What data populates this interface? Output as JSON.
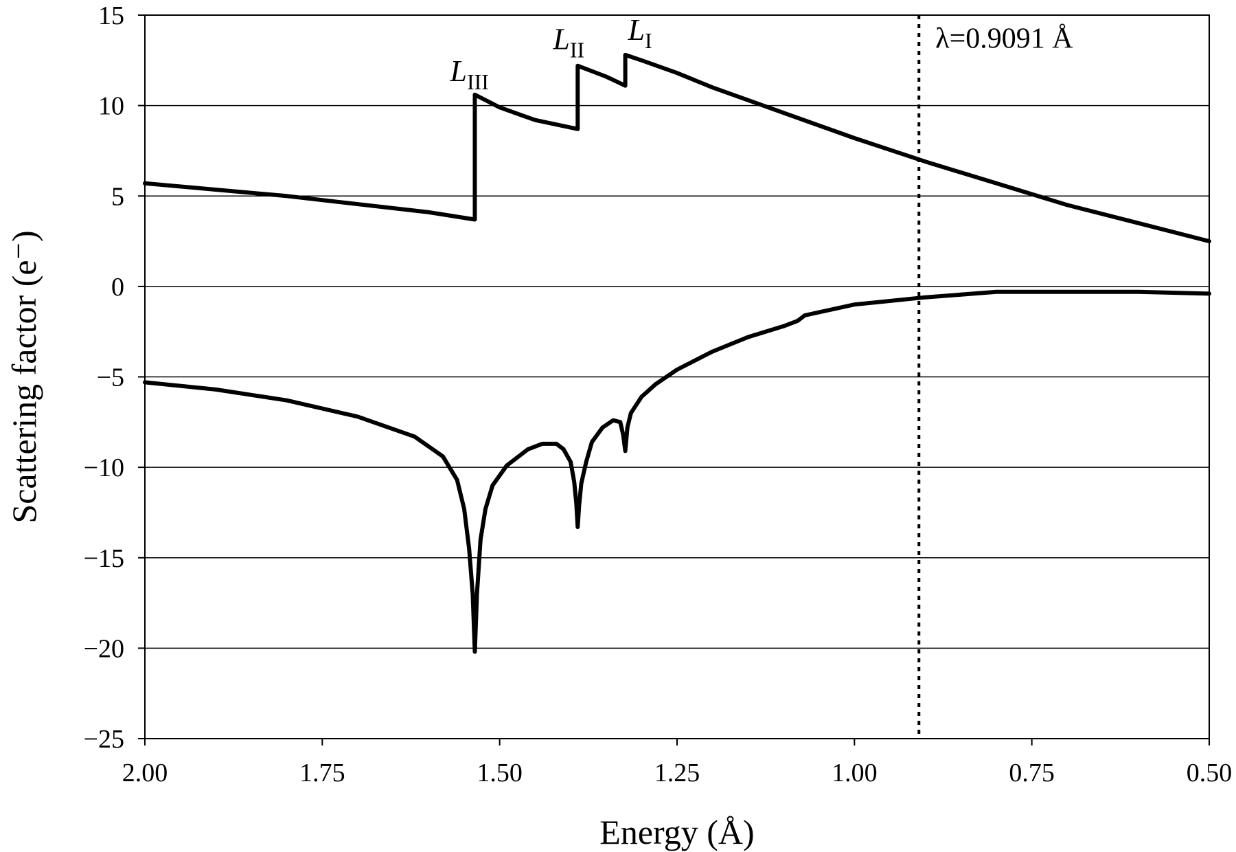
{
  "chart_data": {
    "type": "line",
    "xlabel": "Energy (Å)",
    "ylabel": "Scattering factor (e⁻)",
    "xlim": [
      2.0,
      0.5
    ],
    "x_reversed": true,
    "ylim": [
      -25,
      15
    ],
    "x_ticks": [
      2.0,
      1.75,
      1.5,
      1.25,
      1.0,
      0.75,
      0.5
    ],
    "x_tick_labels": [
      "2.00",
      "1.75",
      "1.50",
      "1.25",
      "1.00",
      "0.75",
      "0.50"
    ],
    "y_ticks": [
      15,
      10,
      5,
      0,
      -5,
      -10,
      -15,
      -20,
      -25
    ],
    "y_tick_labels": [
      "15",
      "10",
      "5",
      "0",
      "−5",
      "−10",
      "−15",
      "−20",
      "−25"
    ],
    "grid": "horizontal",
    "series": [
      {
        "line_color": "#000000",
        "points": [
          [
            2.0,
            5.7
          ],
          [
            1.8,
            5.0
          ],
          [
            1.6,
            4.1
          ],
          [
            1.535,
            3.7
          ],
          [
            1.535,
            10.6
          ],
          [
            1.5,
            9.9
          ],
          [
            1.45,
            9.2
          ],
          [
            1.39,
            8.7
          ],
          [
            1.39,
            12.2
          ],
          [
            1.35,
            11.6
          ],
          [
            1.323,
            11.1
          ],
          [
            1.323,
            12.8
          ],
          [
            1.3,
            12.5
          ],
          [
            1.25,
            11.8
          ],
          [
            1.2,
            11.0
          ],
          [
            1.1,
            9.6
          ],
          [
            1.0,
            8.2
          ],
          [
            0.9,
            6.9
          ],
          [
            0.8,
            5.7
          ],
          [
            0.7,
            4.5
          ],
          [
            0.6,
            3.5
          ],
          [
            0.5,
            2.5
          ]
        ]
      },
      {
        "line_color": "#000000",
        "points": [
          [
            2.0,
            -5.3
          ],
          [
            1.9,
            -5.7
          ],
          [
            1.8,
            -6.3
          ],
          [
            1.7,
            -7.2
          ],
          [
            1.62,
            -8.3
          ],
          [
            1.58,
            -9.4
          ],
          [
            1.56,
            -10.7
          ],
          [
            1.55,
            -12.3
          ],
          [
            1.543,
            -14.5
          ],
          [
            1.538,
            -17.0
          ],
          [
            1.535,
            -20.2
          ],
          [
            1.532,
            -17.0
          ],
          [
            1.527,
            -14.0
          ],
          [
            1.52,
            -12.3
          ],
          [
            1.51,
            -11.0
          ],
          [
            1.49,
            -9.9
          ],
          [
            1.46,
            -9.0
          ],
          [
            1.44,
            -8.7
          ],
          [
            1.42,
            -8.7
          ],
          [
            1.41,
            -9.0
          ],
          [
            1.4,
            -9.7
          ],
          [
            1.395,
            -10.8
          ],
          [
            1.392,
            -12.0
          ],
          [
            1.39,
            -13.3
          ],
          [
            1.388,
            -12.1
          ],
          [
            1.385,
            -10.9
          ],
          [
            1.378,
            -9.7
          ],
          [
            1.37,
            -8.6
          ],
          [
            1.355,
            -7.8
          ],
          [
            1.34,
            -7.4
          ],
          [
            1.33,
            -7.5
          ],
          [
            1.326,
            -8.2
          ],
          [
            1.323,
            -9.1
          ],
          [
            1.32,
            -7.8
          ],
          [
            1.315,
            -7.0
          ],
          [
            1.3,
            -6.1
          ],
          [
            1.28,
            -5.4
          ],
          [
            1.25,
            -4.6
          ],
          [
            1.2,
            -3.6
          ],
          [
            1.15,
            -2.8
          ],
          [
            1.1,
            -2.2
          ],
          [
            1.08,
            -1.9
          ],
          [
            1.07,
            -1.6
          ],
          [
            1.0,
            -1.0
          ],
          [
            0.9,
            -0.6
          ],
          [
            0.8,
            -0.3
          ],
          [
            0.7,
            -0.3
          ],
          [
            0.6,
            -0.3
          ],
          [
            0.5,
            -0.4
          ]
        ]
      }
    ],
    "annotations": [
      {
        "base": "L",
        "sub": "III",
        "x": 1.535,
        "y": 10.6
      },
      {
        "base": "L",
        "sub": "II",
        "x": 1.39,
        "y": 12.2
      },
      {
        "base": "L",
        "sub": "I",
        "x": 1.323,
        "y": 12.8
      }
    ],
    "reference_line": {
      "x": 0.9091,
      "style": "dotted",
      "label": "λ=0.9091 Å"
    }
  }
}
